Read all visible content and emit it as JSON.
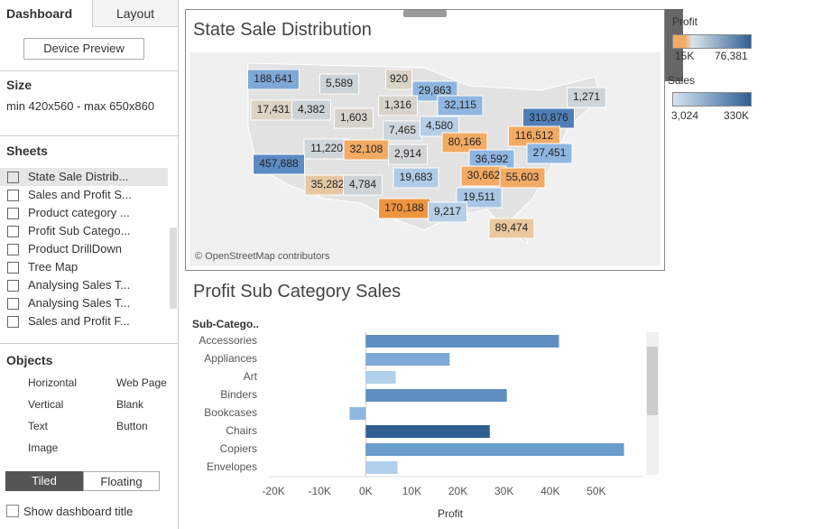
{
  "sidebar": {
    "tabs": [
      "Dashboard",
      "Layout"
    ],
    "device_preview": "Device Preview",
    "size_title": "Size",
    "size_value": "min 420x560 - max 650x860",
    "sheets_title": "Sheets",
    "sheets": [
      "State Sale Distrib...",
      "Sales and Profit S...",
      "Product category ...",
      "Profit Sub Catego...",
      "Product DrillDown",
      "Tree Map",
      "Analysing Sales T...",
      "Analysing Sales T...",
      "Sales and Profit F..."
    ],
    "objects_title": "Objects",
    "objects": [
      "Horizontal",
      "Web Page",
      "Vertical",
      "Blank",
      "Text",
      "Button",
      "Image"
    ],
    "layout_modes": [
      "Tiled",
      "Floating"
    ],
    "show_title": "Show dashboard title"
  },
  "map": {
    "title": "State Sale Distribution",
    "attribution": "© OpenStreetMap contributors",
    "labels": [
      {
        "text": "188,641",
        "color": "#7fa8d6"
      },
      {
        "text": "5,589",
        "color": "#cdd3d6"
      },
      {
        "text": "920",
        "color": "#d9d2c6"
      },
      {
        "text": "29,863",
        "color": "#8fb6e0"
      },
      {
        "text": "1,271",
        "color": "#cfd4d8"
      },
      {
        "text": "17,431",
        "color": "#ddd3c2"
      },
      {
        "text": "4,382",
        "color": "#cdd3d6"
      },
      {
        "text": "1,603",
        "color": "#d6d3cb"
      },
      {
        "text": "1,316",
        "color": "#d6d3cb"
      },
      {
        "text": "32,115",
        "color": "#8fb6e0"
      },
      {
        "text": "310,876",
        "color": "#4f7fb6"
      },
      {
        "text": "7,465",
        "color": "#cdd6dc"
      },
      {
        "text": "4,580",
        "color": "#b6cee6"
      },
      {
        "text": "11,220",
        "color": "#cfd6db"
      },
      {
        "text": "32,108",
        "color": "#f3aa63"
      },
      {
        "text": "80,166",
        "color": "#f3aa63"
      },
      {
        "text": "116,512",
        "color": "#f3aa63"
      },
      {
        "text": "2,914",
        "color": "#d2d5d6"
      },
      {
        "text": "36,592",
        "color": "#8fb6e0"
      },
      {
        "text": "27,451",
        "color": "#8fb6e0"
      },
      {
        "text": "457,688",
        "color": "#5b8cc4"
      },
      {
        "text": "19,683",
        "color": "#b0cbe6"
      },
      {
        "text": "30,662",
        "color": "#f3aa63"
      },
      {
        "text": "55,603",
        "color": "#f3aa63"
      },
      {
        "text": "35,282",
        "color": "#e6c9a3"
      },
      {
        "text": "4,784",
        "color": "#cdd3d6"
      },
      {
        "text": "19,511",
        "color": "#a8c6e4"
      },
      {
        "text": "170,188",
        "color": "#f0953f"
      },
      {
        "text": "9,217",
        "color": "#b6cee6"
      },
      {
        "text": "89,474",
        "color": "#ecc89f"
      }
    ]
  },
  "legends": {
    "profit_title": "Profit",
    "profit_min": "15K",
    "profit_max": "76,381",
    "sales_title": "Sales",
    "sales_min": "3,024",
    "sales_max": "330K"
  },
  "bar_chart": {
    "type": "bar",
    "title": "Profit Sub Category Sales",
    "category_header": "Sub-Catego..",
    "x_label": "Profit",
    "categories": [
      "Accessories",
      "Appliances",
      "Art",
      "Binders",
      "Bookcases",
      "Chairs",
      "Copiers",
      "Envelopes"
    ],
    "values": [
      41900,
      18200,
      6500,
      30600,
      -3500,
      26900,
      56000,
      6900
    ],
    "colors": [
      "#5f8fc2",
      "#7ea9d4",
      "#b0d0ec",
      "#5f8fc2",
      "#8fb6de",
      "#2f5f92",
      "#6a9ccc",
      "#b0d0ec"
    ],
    "xlim": [
      -21000,
      60000
    ],
    "xticks": [
      {
        "value": -20000,
        "label": "-20K"
      },
      {
        "value": -10000,
        "label": "-10K"
      },
      {
        "value": 0,
        "label": "0K"
      },
      {
        "value": 10000,
        "label": "10K"
      },
      {
        "value": 20000,
        "label": "20K"
      },
      {
        "value": 30000,
        "label": "30K"
      },
      {
        "value": 40000,
        "label": "40K"
      },
      {
        "value": 50000,
        "label": "50K"
      }
    ]
  }
}
